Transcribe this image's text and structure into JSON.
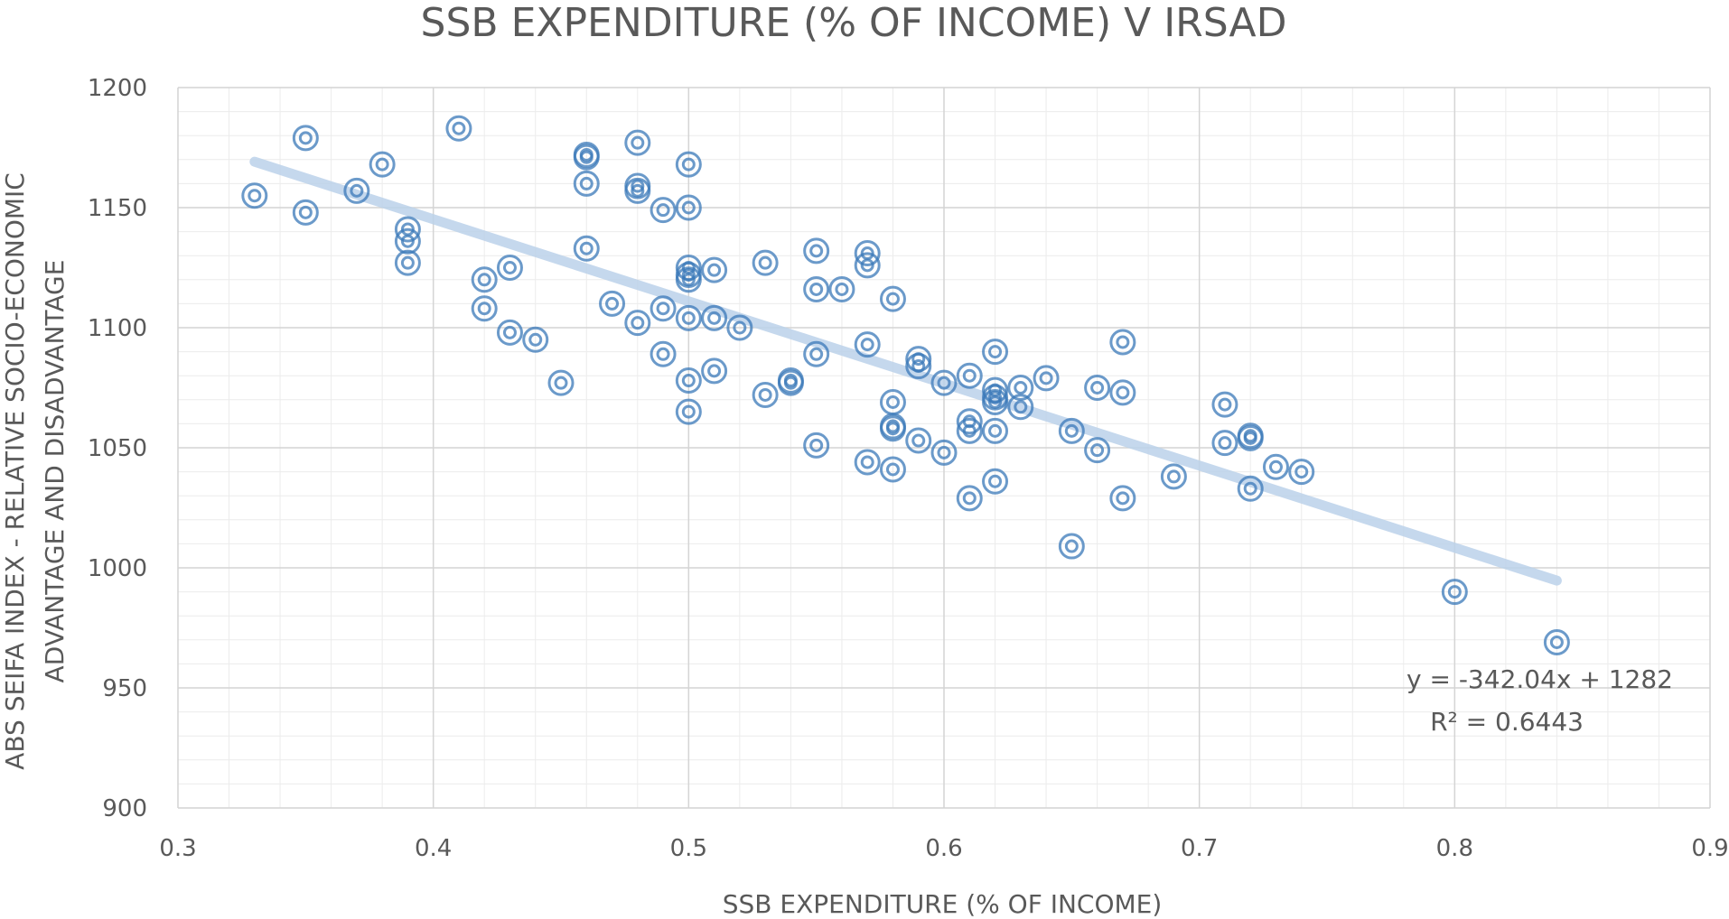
{
  "chart_data": {
    "type": "scatter",
    "title": "SSB EXPENDITURE (% OF INCOME) V IRSAD",
    "xlabel": "SSB EXPENDITURE  (% OF INCOME)",
    "ylabel_line1": "ABS SEIFA INDEX - RELATIVE SOCIO-ECONOMIC",
    "ylabel_line2": "ADVANTAGE AND DISADVANTAGE",
    "xlim": [
      0.3,
      0.9
    ],
    "ylim": [
      900,
      1200
    ],
    "x_ticks": [
      "0.3",
      "0.4",
      "0.5",
      "0.6",
      "0.7",
      "0.8",
      "0.9"
    ],
    "y_ticks": [
      "900",
      "950",
      "1000",
      "1050",
      "1100",
      "1150",
      "1200"
    ],
    "grid": true,
    "marker_color": "#3a78b8",
    "trendline_color": "#bcd2ea",
    "trendline": {
      "slope": -342.04,
      "intercept": 1282,
      "x_range": [
        0.33,
        0.84
      ],
      "equation_label": "y = -342.04x + 1282",
      "r2_label": "R² = 0.6443"
    },
    "points": [
      [
        0.33,
        1155
      ],
      [
        0.35,
        1179
      ],
      [
        0.35,
        1148
      ],
      [
        0.37,
        1157
      ],
      [
        0.38,
        1168
      ],
      [
        0.39,
        1141
      ],
      [
        0.39,
        1136
      ],
      [
        0.39,
        1127
      ],
      [
        0.41,
        1183
      ],
      [
        0.42,
        1120
      ],
      [
        0.42,
        1108
      ],
      [
        0.43,
        1125
      ],
      [
        0.43,
        1098
      ],
      [
        0.44,
        1095
      ],
      [
        0.45,
        1077
      ],
      [
        0.46,
        1172
      ],
      [
        0.46,
        1171
      ],
      [
        0.46,
        1160
      ],
      [
        0.46,
        1133
      ],
      [
        0.47,
        1110
      ],
      [
        0.48,
        1177
      ],
      [
        0.48,
        1159
      ],
      [
        0.48,
        1157
      ],
      [
        0.48,
        1102
      ],
      [
        0.49,
        1149
      ],
      [
        0.49,
        1108
      ],
      [
        0.49,
        1089
      ],
      [
        0.5,
        1168
      ],
      [
        0.5,
        1150
      ],
      [
        0.5,
        1125
      ],
      [
        0.5,
        1122
      ],
      [
        0.5,
        1120
      ],
      [
        0.5,
        1104
      ],
      [
        0.5,
        1078
      ],
      [
        0.5,
        1065
      ],
      [
        0.51,
        1124
      ],
      [
        0.51,
        1104
      ],
      [
        0.51,
        1082
      ],
      [
        0.52,
        1100
      ],
      [
        0.53,
        1127
      ],
      [
        0.53,
        1072
      ],
      [
        0.54,
        1078
      ],
      [
        0.54,
        1077
      ],
      [
        0.55,
        1132
      ],
      [
        0.55,
        1116
      ],
      [
        0.55,
        1089
      ],
      [
        0.55,
        1051
      ],
      [
        0.56,
        1116
      ],
      [
        0.57,
        1131
      ],
      [
        0.57,
        1126
      ],
      [
        0.57,
        1093
      ],
      [
        0.57,
        1044
      ],
      [
        0.58,
        1112
      ],
      [
        0.58,
        1069
      ],
      [
        0.58,
        1059
      ],
      [
        0.58,
        1058
      ],
      [
        0.58,
        1041
      ],
      [
        0.59,
        1087
      ],
      [
        0.59,
        1084
      ],
      [
        0.59,
        1053
      ],
      [
        0.6,
        1077
      ],
      [
        0.6,
        1048
      ],
      [
        0.61,
        1080
      ],
      [
        0.61,
        1061
      ],
      [
        0.61,
        1057
      ],
      [
        0.61,
        1029
      ],
      [
        0.62,
        1090
      ],
      [
        0.62,
        1074
      ],
      [
        0.62,
        1071
      ],
      [
        0.62,
        1069
      ],
      [
        0.62,
        1057
      ],
      [
        0.62,
        1036
      ],
      [
        0.63,
        1075
      ],
      [
        0.63,
        1067
      ],
      [
        0.64,
        1079
      ],
      [
        0.65,
        1057
      ],
      [
        0.65,
        1009
      ],
      [
        0.66,
        1075
      ],
      [
        0.66,
        1049
      ],
      [
        0.67,
        1094
      ],
      [
        0.67,
        1073
      ],
      [
        0.67,
        1029
      ],
      [
        0.69,
        1038
      ],
      [
        0.71,
        1068
      ],
      [
        0.71,
        1052
      ],
      [
        0.72,
        1055
      ],
      [
        0.72,
        1054
      ],
      [
        0.72,
        1033
      ],
      [
        0.73,
        1042
      ],
      [
        0.74,
        1040
      ],
      [
        0.8,
        990
      ],
      [
        0.84,
        969
      ]
    ]
  }
}
